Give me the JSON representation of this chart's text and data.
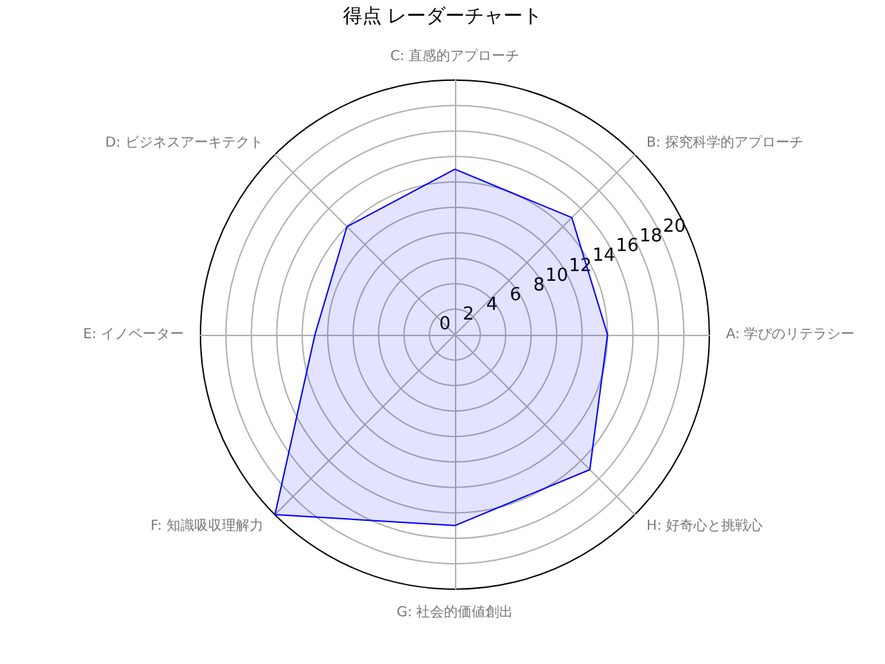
{
  "chart_data": {
    "type": "radar",
    "title": "得点 レーダーチャート",
    "categories": [
      "C: 直感的アプローチ",
      "B: 探究科学的アプローチ",
      "A: 学びのリテラシー",
      "H: 好奇心と挑戦心",
      "G: 社会的価値創出",
      "F: 知識吸収理解力",
      "E: イノベーター",
      "D: ビジネスアーキテクト"
    ],
    "series": [
      {
        "color": "#0000ff",
        "values": [
          13,
          13,
          12,
          15,
          15,
          20,
          11,
          12
        ]
      }
    ],
    "ylim": [
      0,
      20
    ],
    "yticks": [
      0,
      2,
      4,
      6,
      8,
      10,
      12,
      14,
      16,
      18,
      20
    ],
    "grid": true,
    "marker": "none",
    "line_style": "solid"
  }
}
